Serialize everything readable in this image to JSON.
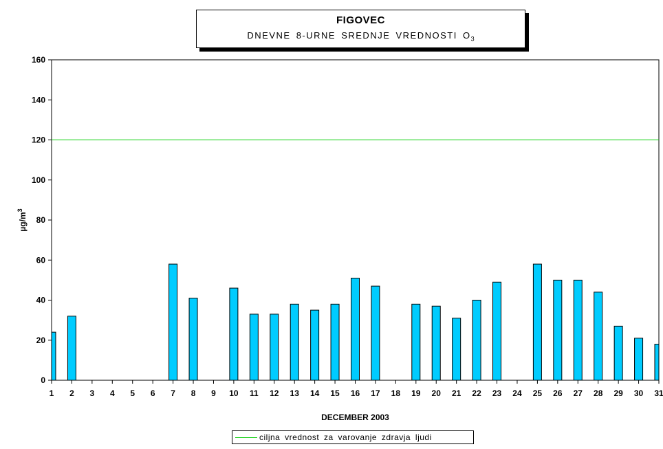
{
  "chart_data": {
    "type": "bar",
    "title": "FIGOVEC",
    "subtitle": "DNEVNE 8-URNE SREDNJE VREDNOSTI O",
    "subtitle_subscript": "3",
    "xlabel": "DECEMBER 2003",
    "ylabel": "µg/m",
    "ylabel_superscript": "3",
    "ylim": [
      0,
      160
    ],
    "yticks": [
      0,
      20,
      40,
      60,
      80,
      100,
      120,
      140,
      160
    ],
    "categories": [
      "1",
      "2",
      "3",
      "4",
      "5",
      "6",
      "7",
      "8",
      "9",
      "10",
      "11",
      "12",
      "13",
      "14",
      "15",
      "16",
      "17",
      "18",
      "19",
      "20",
      "21",
      "22",
      "23",
      "24",
      "25",
      "26",
      "27",
      "28",
      "29",
      "30",
      "31"
    ],
    "series": [
      {
        "values": [
          24,
          32,
          null,
          null,
          null,
          null,
          58,
          41,
          null,
          46,
          33,
          33,
          38,
          35,
          38,
          51,
          47,
          null,
          38,
          37,
          31,
          40,
          49,
          null,
          58,
          50,
          50,
          44,
          27,
          21,
          18
        ],
        "color": "#00ccff"
      }
    ],
    "reference_line": {
      "name": "ciljna vrednost za varovanje zdravja ljudi",
      "value": 120,
      "color": "#00cc00"
    },
    "grid": false,
    "legend_position": "bottom-center"
  }
}
